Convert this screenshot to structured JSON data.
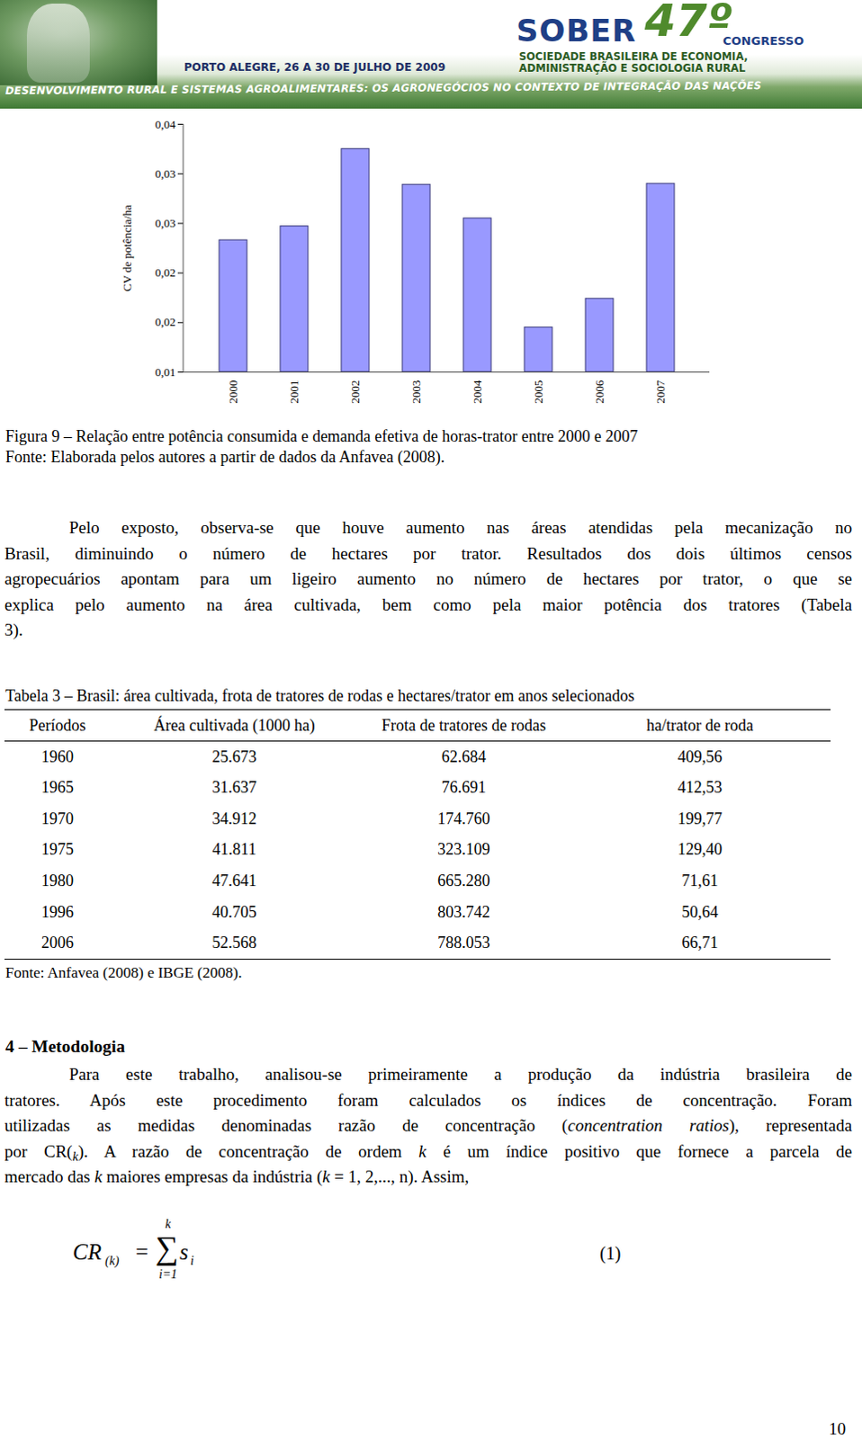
{
  "header": {
    "sober": "SOBER",
    "edition": "47º",
    "congress": "CONGRESSO",
    "society": [
      "SOCIEDADE BRASILEIRA DE ECONOMIA,",
      "ADMINISTRAÇÃO E SOCIOLOGIA RURAL"
    ],
    "place_date": "PORTO ALEGRE, 26 A 30 DE JULHO DE 2009",
    "theme": "DESENVOLVIMENTO RURAL E SISTEMAS AGROALIMENTARES: OS AGRONEGÓCIOS NO CONTEXTO DE INTEGRAÇÃO DAS NAÇÕES"
  },
  "chart_data": {
    "type": "bar",
    "categories": [
      "2000",
      "2001",
      "2002",
      "2003",
      "2004",
      "2005",
      "2006",
      "2007"
    ],
    "values": [
      0.0233,
      0.0247,
      0.0325,
      0.0289,
      0.0255,
      0.0145,
      0.0174,
      0.029
    ],
    "color": "#9999ff",
    "ylabel": "CV de potência/ha",
    "ylim": [
      0.01,
      0.035
    ],
    "yticks": [
      {
        "value": 0.01,
        "label": "0,01"
      },
      {
        "value": 0.015,
        "label": "0,02"
      },
      {
        "value": 0.02,
        "label": "0,02"
      },
      {
        "value": 0.025,
        "label": "0,03"
      },
      {
        "value": 0.03,
        "label": "0,03"
      },
      {
        "value": 0.035,
        "label": "0,04"
      }
    ],
    "grid": false
  },
  "figure_caption": [
    "Figura 9 – Relação entre potência consumida e demanda efetiva de horas-trator entre 2000 e 2007",
    "Fonte: Elaborada pelos autores a partir de dados da Anfavea (2008)."
  ],
  "paragraph": [
    "Pelo exposto, observa-se que houve aumento nas áreas atendidas pela mecanização no",
    "Brasil, diminuindo o número de hectares por trator. Resultados dos dois últimos censos",
    "agropecuários apontam para um ligeiro aumento no número de hectares por trator, o que se",
    "explica pelo aumento na área cultivada, bem como pela maior potência dos tratores (Tabela",
    "3)."
  ],
  "table": {
    "caption": "Tabela 3 – Brasil: área cultivada, frota de tratores de rodas e hectares/trator em anos selecionados",
    "columns": [
      "Períodos",
      "Área cultivada (1000 ha)",
      "Frota de tratores de rodas",
      "ha/trator de roda"
    ],
    "rows": [
      [
        "1960",
        "25.673",
        "62.684",
        "409,56"
      ],
      [
        "1965",
        "31.637",
        "76.691",
        "412,53"
      ],
      [
        "1970",
        "34.912",
        "174.760",
        "199,77"
      ],
      [
        "1975",
        "41.811",
        "323.109",
        "129,40"
      ],
      [
        "1980",
        "47.641",
        "665.280",
        "71,61"
      ],
      [
        "1996",
        "40.705",
        "803.742",
        "50,64"
      ],
      [
        "2006",
        "52.568",
        "788.053",
        "66,71"
      ]
    ],
    "source": "Fonte: Anfavea (2008) e IBGE (2008)."
  },
  "section": {
    "title": "4 – Metodologia",
    "lines": [
      [
        "Para este trabalho, analisou-se primeiramente a produção da indústria brasileira de"
      ],
      [
        "tratores. Após este procedimento foram calculados os índices de concentração. Foram"
      ],
      [
        "utilizadas as medidas denominadas razão de concentração (",
        {
          "text": "concentration ratios",
          "style": "italic"
        },
        "), representada"
      ],
      [
        "por CR(",
        {
          "text": "k",
          "style": "sub_italic"
        },
        "). A razão de concentração de ordem ",
        {
          "text": "k",
          "style": "italic"
        },
        " é um índice positivo que fornece a parcela de"
      ],
      [
        "mercado das ",
        {
          "text": "k",
          "style": "italic"
        },
        " maiores empresas da indústria (",
        {
          "text": "k",
          "style": "italic"
        },
        " = 1, 2,..., n). Assim,"
      ]
    ]
  },
  "formula": {
    "lhs": "CR",
    "lhs_sub": "(k)",
    "operator": "=",
    "sum": "∑",
    "sum_upper": "k",
    "sum_lower": "i=1",
    "term": "s",
    "term_sub": "i",
    "number": "(1)"
  },
  "page_number": "10"
}
